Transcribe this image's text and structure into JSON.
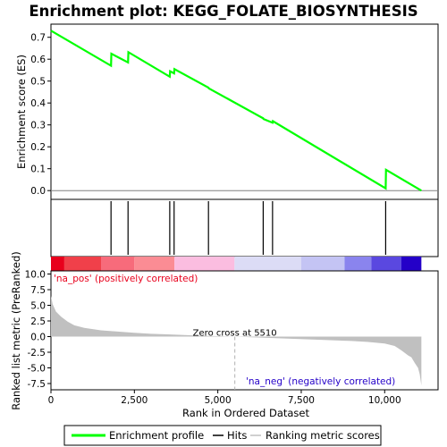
{
  "chart_data": {
    "type": "line",
    "title": "Enrichment plot: KEGG_FOLATE_BIOSYNTHESIS",
    "colors": {
      "enrichment": "#00ff00",
      "hits": "#000000",
      "metric_fill": "#c0c0c0",
      "zero_cross": "#b0b0b0"
    },
    "xlabel": "Rank in Ordered Dataset",
    "xlim": [
      0,
      11600
    ],
    "xticks": [
      0,
      2500,
      5000,
      7500,
      10000
    ],
    "xtick_labels": [
      "0",
      "2,500",
      "5,000",
      "7,500",
      "10,000"
    ],
    "enrichment_panel": {
      "ylabel": "Enrichment score (ES)",
      "ylim": [
        -0.04,
        0.76
      ],
      "yticks": [
        0.0,
        0.1,
        0.2,
        0.3,
        0.4,
        0.5,
        0.6,
        0.7
      ],
      "ytick_labels": [
        "0.0",
        "0.1",
        "0.2",
        "0.3",
        "0.4",
        "0.5",
        "0.6",
        "0.7"
      ],
      "series": [
        {
          "name": "Enrichment profile",
          "x": [
            0,
            1800,
            1810,
            2310,
            2320,
            3560,
            3570,
            3690,
            3700,
            4720,
            4730,
            6360,
            6370,
            6640,
            6650,
            10030,
            10040,
            11100
          ],
          "y": [
            0.73,
            0.57,
            0.625,
            0.585,
            0.632,
            0.52,
            0.545,
            0.535,
            0.555,
            0.47,
            0.467,
            0.33,
            0.327,
            0.31,
            0.317,
            0.01,
            0.095,
            0.0
          ]
        }
      ]
    },
    "hits": [
      1800,
      2310,
      3560,
      3690,
      4720,
      6360,
      6640,
      10030
    ],
    "metric_panel": {
      "ylabel": "Ranked list metric (PreRanked)",
      "ylim": [
        -8.5,
        10.5
      ],
      "yticks": [
        10.0,
        7.5,
        5.0,
        2.5,
        0.0,
        -2.5,
        -5.0,
        -7.5
      ],
      "ytick_labels": [
        "10.0",
        "7.5",
        "5.0",
        "2.5",
        "0.0",
        "-2.5",
        "-5.0",
        "-7.5"
      ],
      "profile_x": [
        0,
        50,
        150,
        300,
        500,
        700,
        1000,
        1500,
        2000,
        2500,
        3000,
        3500,
        4000,
        4500,
        5000,
        5510,
        6000,
        7000,
        8000,
        9000,
        9500,
        10000,
        10300,
        10500,
        10700,
        10800,
        10900,
        11000,
        11050,
        11100
      ],
      "profile_y": [
        6.5,
        5.2,
        4.0,
        3.2,
        2.4,
        1.8,
        1.4,
        1.0,
        0.8,
        0.6,
        0.45,
        0.35,
        0.25,
        0.15,
        0.08,
        0.0,
        -0.1,
        -0.3,
        -0.5,
        -0.7,
        -0.85,
        -1.1,
        -1.5,
        -2.2,
        -3.0,
        -3.3,
        -4.2,
        -5.0,
        -6.0,
        -7.8
      ],
      "zero_cross_label": "Zero cross at 5510",
      "zero_cross_x": 5510,
      "pos_label": "'na_pos' (positively correlated)",
      "neg_label": "'na_neg' (negatively correlated)"
    },
    "heat_bar": {
      "segments": [
        {
          "x0": 0,
          "x1": 400,
          "color": "#e8001c"
        },
        {
          "x0": 400,
          "x1": 1500,
          "color": "#f0404a"
        },
        {
          "x0": 1500,
          "x1": 2500,
          "color": "#f76b7b"
        },
        {
          "x0": 2500,
          "x1": 3700,
          "color": "#fb8c94"
        },
        {
          "x0": 3700,
          "x1": 5500,
          "color": "#fbbde0"
        },
        {
          "x0": 5500,
          "x1": 7500,
          "color": "#dcdcf6"
        },
        {
          "x0": 7500,
          "x1": 8800,
          "color": "#c4c4f4"
        },
        {
          "x0": 8800,
          "x1": 9600,
          "color": "#8a84ee"
        },
        {
          "x0": 9600,
          "x1": 10500,
          "color": "#5a48e0"
        },
        {
          "x0": 10500,
          "x1": 11100,
          "color": "#2400c8"
        }
      ]
    },
    "legend": {
      "position": "bottom",
      "entries": [
        "Enrichment profile",
        "Hits",
        "Ranking metric scores"
      ]
    }
  }
}
